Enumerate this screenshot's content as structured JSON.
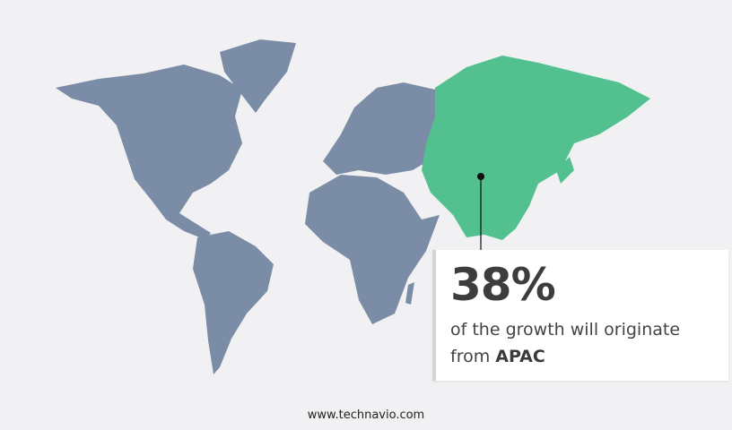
{
  "highlight": {
    "region": "APAC",
    "percent": "38%",
    "text": "of the growth will originate",
    "text_prefix": "from",
    "region_label": "APAC"
  },
  "colors": {
    "map_base": "#7b8ca6",
    "highlight": "#52c08f",
    "background": "#f1f1f3"
  },
  "footer": {
    "url": "www.technavio.com"
  }
}
